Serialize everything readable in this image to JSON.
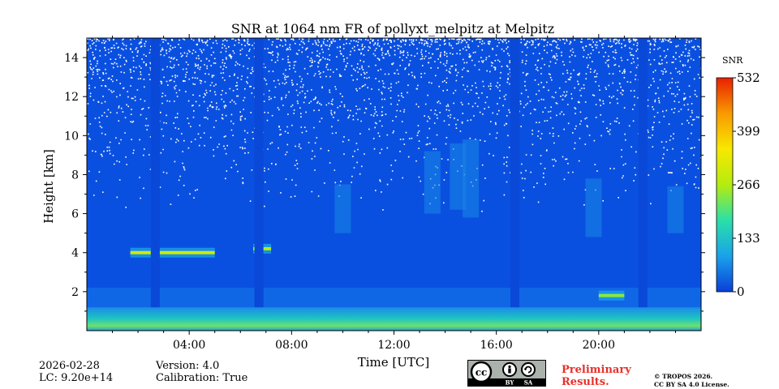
{
  "chart_data": {
    "type": "heatmap",
    "title": "SNR at 1064 nm FR of pollyxt_melpitz at Melpitz",
    "xlabel": "Time [UTC]",
    "ylabel": "Height [km]",
    "xlim": [
      0,
      24
    ],
    "ylim": [
      0,
      15
    ],
    "x_ticks": [
      4,
      8,
      12,
      16,
      20
    ],
    "x_tick_labels": [
      "04:00",
      "08:00",
      "12:00",
      "16:00",
      "20:00"
    ],
    "y_ticks": [
      2,
      4,
      6,
      8,
      10,
      12,
      14
    ],
    "y_tick_labels": [
      "2",
      "4",
      "6",
      "8",
      "10",
      "12",
      "14"
    ],
    "colorbar": {
      "label": "SNR",
      "min": 0,
      "max": 532,
      "ticks": [
        0,
        133,
        266,
        399,
        532
      ],
      "tick_labels": [
        "0",
        "133",
        "266",
        "399",
        "532"
      ],
      "colormap": [
        "#0a3fd8",
        "#1aa2ea",
        "#29e0a8",
        "#b4ec10",
        "#f8e800",
        "#f89a00",
        "#e82000"
      ]
    },
    "background_color": "#0a50e0",
    "near_surface_band": {
      "height_km": [
        0,
        1.2
      ],
      "snr": 200
    },
    "aerosol_layers": [
      {
        "start_h": 1.7,
        "end_h": 5.0,
        "height_km": 4.0,
        "snr": 300
      },
      {
        "start_h": 6.5,
        "end_h": 7.2,
        "height_km": 4.2,
        "snr": 266
      },
      {
        "start_h": 20.0,
        "end_h": 21.0,
        "height_km": 1.8,
        "snr": 240
      }
    ],
    "signal_gaps": [
      {
        "start_h": 2.5,
        "end_h": 2.85
      },
      {
        "start_h": 6.55,
        "end_h": 6.9
      },
      {
        "start_h": 16.55,
        "end_h": 16.9
      },
      {
        "start_h": 21.55,
        "end_h": 21.9
      }
    ],
    "noise_top_km": 9.0
  },
  "footer": {
    "date": "2026-02-28",
    "lc": "LC: 9.20e+14",
    "version": "Version: 4.0",
    "calibration": "Calibration: True",
    "preliminary": [
      "Preliminary",
      "Results."
    ],
    "copyright": [
      "© TROPOS 2026.",
      "CC BY SA 4.0 License."
    ],
    "license_badge": {
      "cc": "cc",
      "by": "BY",
      "sa": "SA"
    }
  }
}
